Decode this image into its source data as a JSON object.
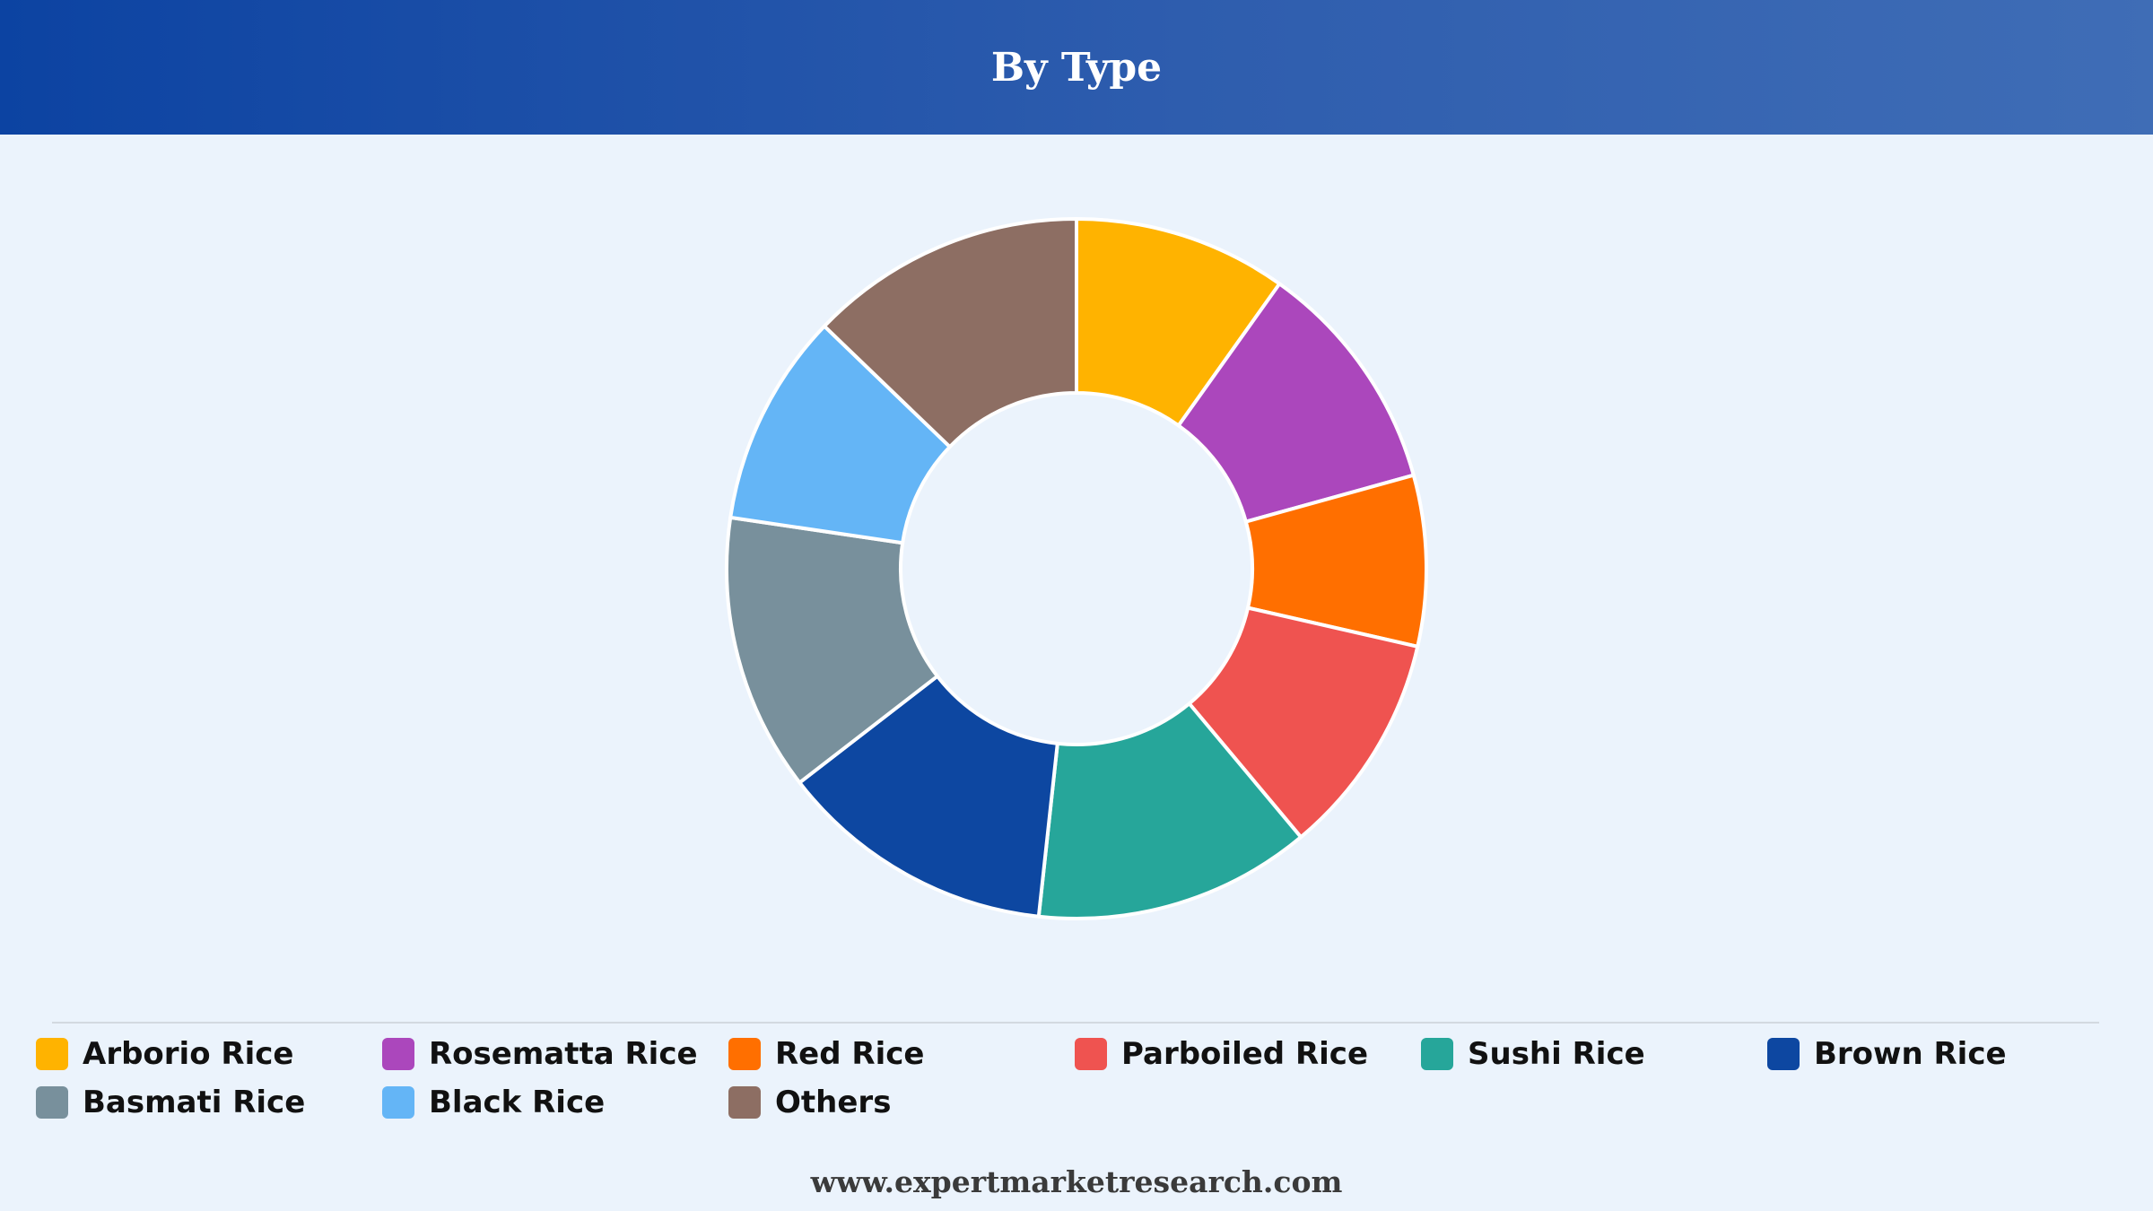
{
  "header": {
    "title": "By Type"
  },
  "footer": {
    "website": "www.expertmarketresearch.com"
  },
  "colors": {
    "background": "#ebf3fc",
    "header_start": "#0c43a2",
    "header_end": "#3f6db6",
    "slice_border": "#ffffff"
  },
  "chart_data": {
    "type": "pie",
    "title": "By Type",
    "legend_position": "bottom",
    "categories": [
      "Arborio Rice",
      "Rosematta Rice",
      "Red Rice",
      "Parboiled Rice",
      "Sushi Rice",
      "Brown Rice",
      "Basmati Rice",
      "Black Rice",
      "Others"
    ],
    "values": [
      10,
      11,
      8,
      10.5,
      13,
      13,
      13,
      10,
      13
    ],
    "colors": [
      "#ffb300",
      "#ab47bc",
      "#ff6f00",
      "#ef5350",
      "#26a69a",
      "#0d47a1",
      "#78909c",
      "#64b5f6",
      "#8d6e63"
    ]
  }
}
